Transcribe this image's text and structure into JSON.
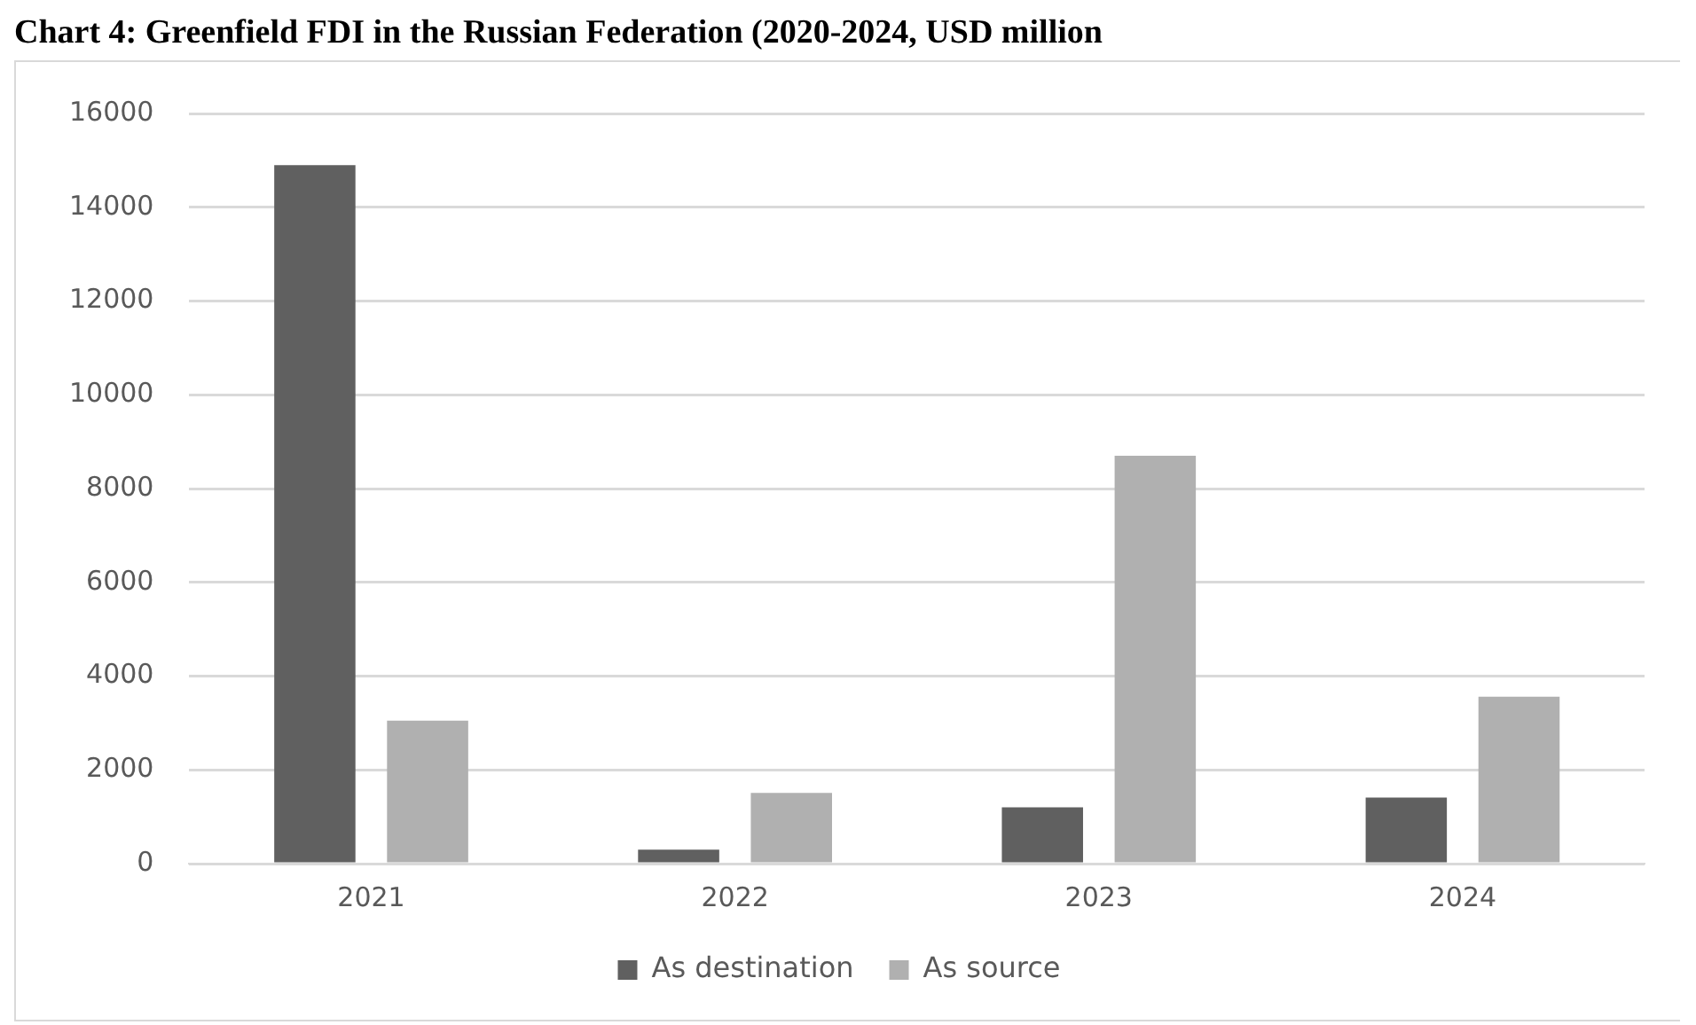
{
  "chart_data": {
    "type": "bar",
    "title": "Chart 4: Greenfield FDI in the Russian Federation (2020-2024, USD million",
    "categories": [
      "2021",
      "2022",
      "2023",
      "2024"
    ],
    "series": [
      {
        "name": "As destination",
        "color": "#606060",
        "values": [
          14900,
          300,
          1200,
          1410
        ]
      },
      {
        "name": "As source",
        "color": "#b0b0b0",
        "values": [
          3050,
          1510,
          8700,
          3560
        ]
      }
    ],
    "ylim": [
      0,
      16000
    ],
    "yticks": [
      0,
      2000,
      4000,
      6000,
      8000,
      10000,
      12000,
      14000,
      16000
    ],
    "grid": "y",
    "legend": "bottom"
  }
}
